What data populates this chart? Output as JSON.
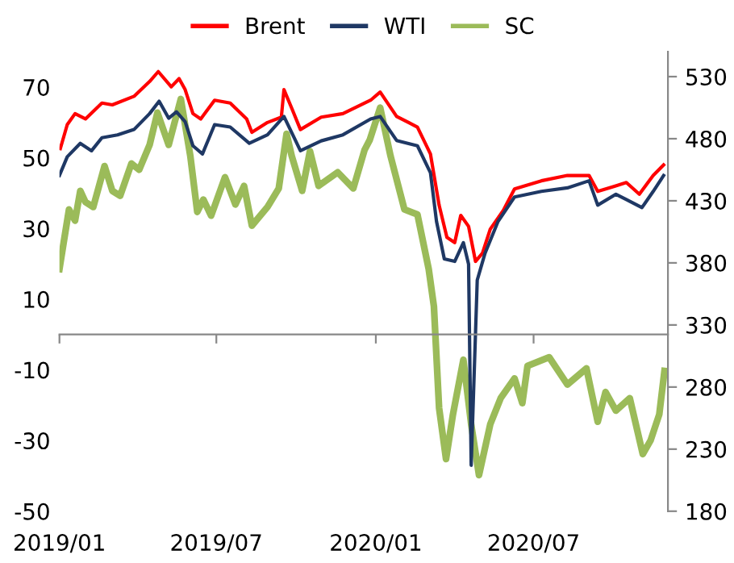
{
  "chart_data": {
    "type": "line",
    "legend": "top",
    "grid": false,
    "line_style": "solid",
    "marker": "none",
    "xlim": [
      "2019-01-01",
      "2020-12-03"
    ],
    "xticks": [
      {
        "value": "2019-01-01",
        "label": "2019/01"
      },
      {
        "value": "2019-07-01",
        "label": "2019/07"
      },
      {
        "value": "2020-01-01",
        "label": "2020/01"
      },
      {
        "value": "2020-07-01",
        "label": "2020/07"
      }
    ],
    "ylim": [
      -50,
      80
    ],
    "yticks": [
      -50,
      -30,
      -10,
      10,
      30,
      50,
      70
    ],
    "y2lim": [
      180,
      550
    ],
    "y2ticks": [
      180,
      230,
      280,
      330,
      380,
      430,
      480,
      530
    ],
    "series": [
      {
        "name": "Brent",
        "color": "#ff0000",
        "x": [
          "2019-01-02",
          "2019-01-10",
          "2019-01-19",
          "2019-01-31",
          "2019-02-19",
          "2019-03-03",
          "2019-03-28",
          "2019-04-15",
          "2019-04-25",
          "2019-05-10",
          "2019-05-19",
          "2019-05-26",
          "2019-06-04",
          "2019-06-13",
          "2019-06-29",
          "2019-07-17",
          "2019-08-05",
          "2019-08-11",
          "2019-08-29",
          "2019-09-14",
          "2019-09-17",
          "2019-09-26",
          "2019-10-06",
          "2019-10-30",
          "2019-11-24",
          "2019-12-26",
          "2020-01-06",
          "2020-01-25",
          "2020-02-18",
          "2020-03-04",
          "2020-03-14",
          "2020-03-23",
          "2020-04-01",
          "2020-04-08",
          "2020-04-17",
          "2020-04-25",
          "2020-05-03",
          "2020-05-12",
          "2020-05-27",
          "2020-06-09",
          "2020-07-10",
          "2020-08-09",
          "2020-09-03",
          "2020-09-13",
          "2020-10-03",
          "2020-10-16",
          "2020-10-31",
          "2020-11-16",
          "2020-11-28"
        ],
        "values": [
          52.6,
          59.4,
          62.5,
          61,
          65.5,
          65,
          67.4,
          71.6,
          74.4,
          70.1,
          72.4,
          69.3,
          62.5,
          61,
          66.3,
          65.5,
          61,
          57.2,
          60,
          61.5,
          69.3,
          64,
          58,
          61.5,
          62.5,
          66.3,
          68.6,
          61.7,
          58.7,
          51.1,
          36.6,
          27.5,
          26,
          33.7,
          30.6,
          20.7,
          23,
          29.8,
          35.1,
          41.2,
          43.5,
          45,
          45,
          40.5,
          42,
          43,
          39.7,
          45,
          48
        ]
      },
      {
        "name": "WTI",
        "color": "#1f3864",
        "x": [
          "2019-01-01",
          "2019-01-10",
          "2019-01-25",
          "2019-02-07",
          "2019-02-19",
          "2019-03-09",
          "2019-03-28",
          "2019-04-15",
          "2019-04-26",
          "2019-05-07",
          "2019-05-16",
          "2019-05-26",
          "2019-06-04",
          "2019-06-15",
          "2019-06-29",
          "2019-07-17",
          "2019-08-08",
          "2019-08-29",
          "2019-09-17",
          "2019-10-06",
          "2019-10-30",
          "2019-11-24",
          "2019-12-26",
          "2020-01-06",
          "2020-01-25",
          "2020-02-18",
          "2020-03-04",
          "2020-03-11",
          "2020-03-20",
          "2020-04-01",
          "2020-04-11",
          "2020-04-17",
          "2020-04-20",
          "2020-04-27",
          "2020-05-06",
          "2020-05-21",
          "2020-06-09",
          "2020-07-10",
          "2020-08-09",
          "2020-09-03",
          "2020-09-13",
          "2020-10-04",
          "2020-10-16",
          "2020-11-03",
          "2020-11-16",
          "2020-11-28"
        ],
        "values": [
          45,
          50.3,
          54.1,
          52,
          55.7,
          56.5,
          58,
          62.5,
          66,
          61.2,
          63,
          60.2,
          53.4,
          51.1,
          59.4,
          58.7,
          54.1,
          56.5,
          61.7,
          52,
          54.8,
          56.5,
          61,
          61.7,
          54.9,
          53.4,
          45.8,
          32,
          21.4,
          20.7,
          26,
          19.9,
          -37,
          15.4,
          23,
          32,
          38.9,
          40.5,
          41.5,
          43.5,
          36.6,
          39.7,
          38.2,
          35.9,
          40.5,
          45
        ]
      },
      {
        "name": "SC",
        "color": "#9bbb59",
        "axis": "y2",
        "x": [
          "2019-01-01",
          "2019-01-06",
          "2019-01-12",
          "2019-01-19",
          "2019-01-25",
          "2019-01-31",
          "2019-02-09",
          "2019-02-22",
          "2019-03-03",
          "2019-03-12",
          "2019-03-25",
          "2019-04-03",
          "2019-04-15",
          "2019-04-24",
          "2019-05-07",
          "2019-05-21",
          "2019-06-01",
          "2019-06-09",
          "2019-06-16",
          "2019-06-25",
          "2019-07-11",
          "2019-07-23",
          "2019-08-02",
          "2019-08-11",
          "2019-08-29",
          "2019-09-11",
          "2019-09-20",
          "2019-09-26",
          "2019-10-08",
          "2019-10-17",
          "2019-10-27",
          "2019-11-18",
          "2019-12-06",
          "2019-12-19",
          "2019-12-25",
          "2020-01-06",
          "2020-01-18",
          "2020-02-03",
          "2020-02-18",
          "2020-03-02",
          "2020-03-08",
          "2020-03-14",
          "2020-03-22",
          "2020-03-30",
          "2020-04-11",
          "2020-04-20",
          "2020-04-29",
          "2020-05-12",
          "2020-05-24",
          "2020-06-09",
          "2020-06-18",
          "2020-06-24",
          "2020-07-19",
          "2020-08-09",
          "2020-08-31",
          "2020-09-13",
          "2020-09-22",
          "2020-10-04",
          "2020-10-20",
          "2020-11-04",
          "2020-11-13",
          "2020-11-23",
          "2020-11-29"
        ],
        "values": [
          375,
          397,
          423,
          414,
          438,
          429,
          425,
          458,
          438,
          434,
          460,
          455,
          475,
          501,
          475,
          512,
          466,
          421,
          431,
          418,
          449,
          427,
          442,
          410,
          425,
          440,
          484,
          466,
          438,
          470,
          442,
          453,
          440,
          471,
          479,
          505,
          466,
          423,
          419,
          375,
          345,
          263,
          222,
          258,
          302,
          250,
          209,
          250,
          271,
          287,
          267,
          297,
          304,
          282,
          295,
          252,
          276,
          261,
          271,
          226,
          237,
          258,
          293
        ]
      }
    ]
  }
}
